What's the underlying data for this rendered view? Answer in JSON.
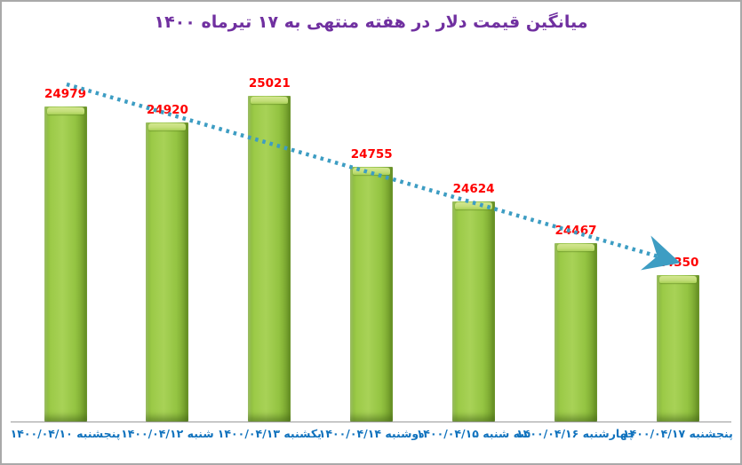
{
  "title": "میانگین قیمت دلار در هفته منتهی به ۱۷ تیرماه ۱۴۰۰",
  "colors": {
    "title": "#7030a0",
    "bar_fill": "#94c442",
    "bar_highlight": "#c3de79",
    "bar_shadow": "#739f2b",
    "value_label": "#fe0000",
    "axis_label": "#1072bd",
    "trendline": "#3d9dc3",
    "axis_line": "#9b9b9b",
    "border": "#a9a9a9"
  },
  "chart_data": {
    "type": "bar",
    "title": "میانگین قیمت دلار در هفته منتهی به ۱۷ تیرماه ۱۴۰۰",
    "categories": [
      "پنجشنبه ۱۴۰۰/۰۴/۱۰",
      "شنبه ۱۴۰۰/۰۴/۱۲",
      "یکشنبه ۱۴۰۰/۰۴/۱۳",
      "دوشنبه ۱۴۰۰/۰۴/۱۴",
      "سه شنبه ۱۴۰۰/۰۴/۱۵",
      "چهارشنبه ۱۴۰۰/۰۴/۱۶",
      "پنجشنبه ۱۴۰۰/۰۴/۱۷"
    ],
    "values": [
      24979,
      24920,
      25021,
      24755,
      24624,
      24467,
      24350
    ],
    "value_labels": [
      "24979",
      "24920",
      "25021",
      "24755",
      "24624",
      "24467",
      "24350"
    ],
    "xlabel": "",
    "ylabel": "",
    "ylim": [
      23800,
      25200
    ],
    "grid": false,
    "legend": "none",
    "axis_labels_visible": "x-only",
    "trendline": {
      "type": "linear",
      "style": "dotted",
      "arrow_at_end": true,
      "direction": "decreasing"
    }
  }
}
